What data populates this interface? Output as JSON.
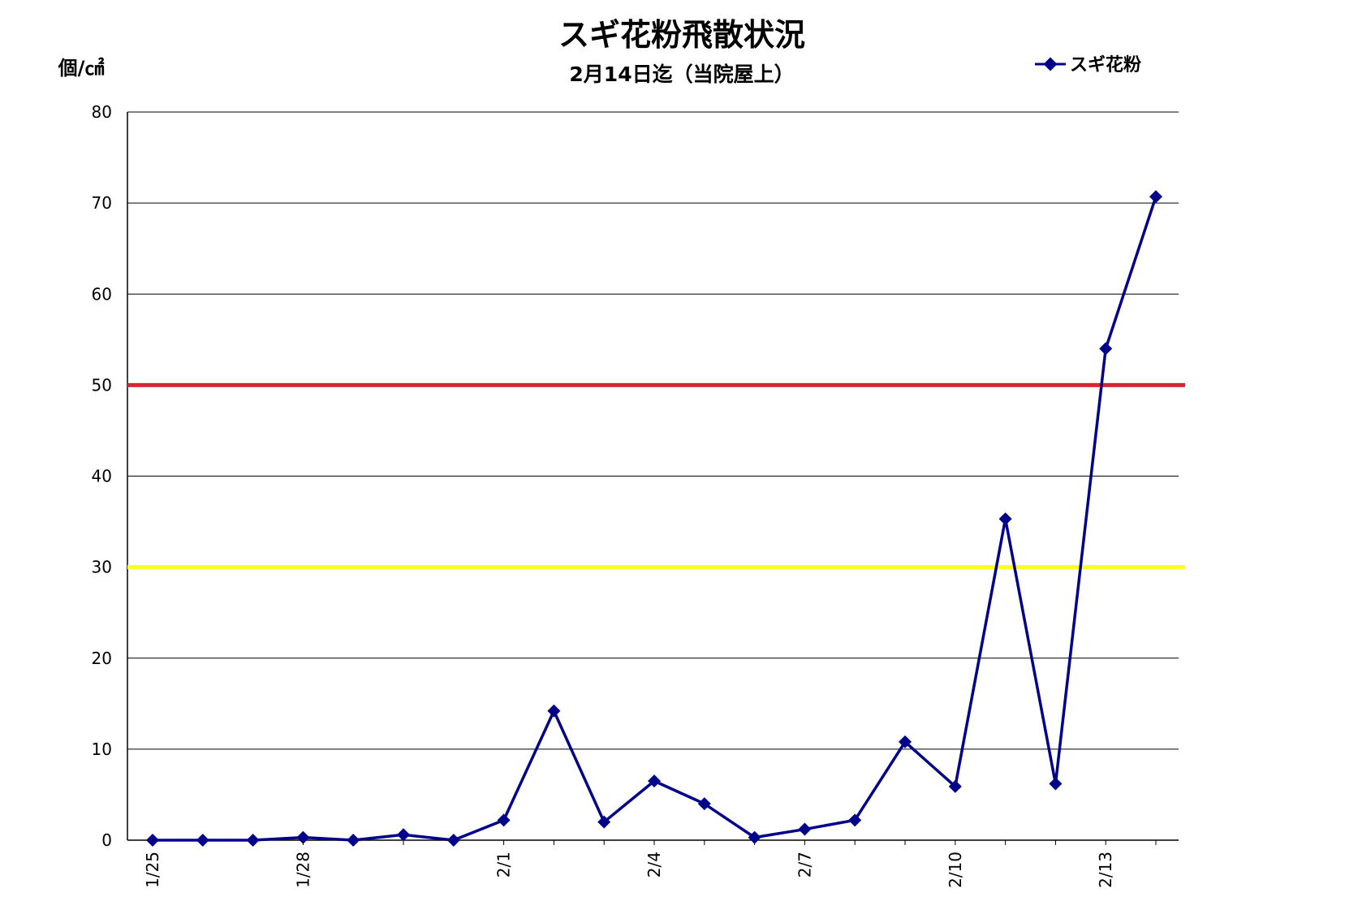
{
  "chart_data": {
    "type": "line",
    "title": "スギ花粉飛散状況",
    "subtitle": "2月14日迄（当院屋上）",
    "ylabel": "個/㎠",
    "ylim": [
      0,
      80
    ],
    "yticks": [
      0,
      10,
      20,
      30,
      40,
      50,
      60,
      70,
      80
    ],
    "grid": true,
    "legend_position": "top-right",
    "x": [
      "1/25",
      "1/26",
      "1/27",
      "1/28",
      "1/29",
      "1/30",
      "1/31",
      "2/1",
      "2/2",
      "2/3",
      "2/4",
      "2/5",
      "2/6",
      "2/7",
      "2/8",
      "2/9",
      "2/10",
      "2/11",
      "2/12",
      "2/13",
      "2/14"
    ],
    "x_tick_labels": [
      "1/25",
      "1/28",
      "2/1",
      "2/4",
      "2/7",
      "2/10",
      "2/13"
    ],
    "series": [
      {
        "name": "スギ花粉",
        "color": "#00008B",
        "marker": "diamond",
        "values": [
          0.0,
          0.0,
          0.0,
          0.3,
          0.0,
          0.6,
          0.0,
          2.2,
          14.2,
          2.0,
          6.5,
          4.0,
          0.3,
          1.2,
          2.2,
          10.8,
          5.9,
          35.3,
          6.2,
          54.0,
          70.7
        ]
      }
    ],
    "reference_lines": [
      {
        "value": 50,
        "color": "#D7262F"
      },
      {
        "value": 30,
        "color": "#FFFF1E"
      }
    ]
  }
}
